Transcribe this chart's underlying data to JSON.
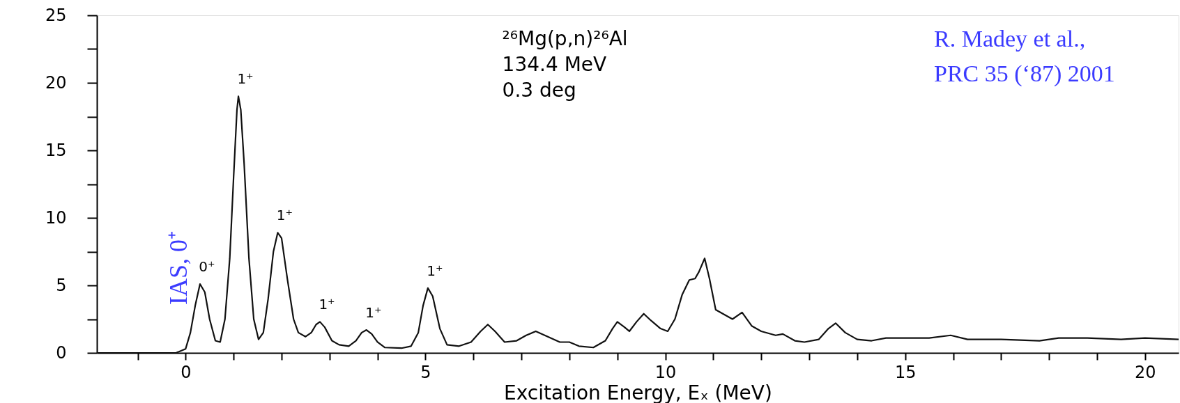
{
  "chart_data": {
    "type": "line",
    "xlabel": "Excitation Energy, Eₓ (MeV)",
    "x": [
      -1.85,
      -0.2,
      0,
      0.1,
      0.2,
      0.3,
      0.4,
      0.5,
      0.62,
      0.72,
      0.82,
      0.92,
      1.0,
      1.07,
      1.1,
      1.15,
      1.22,
      1.32,
      1.42,
      1.52,
      1.62,
      1.72,
      1.83,
      1.92,
      2.0,
      2.12,
      2.25,
      2.35,
      2.5,
      2.62,
      2.72,
      2.8,
      2.9,
      3.05,
      3.2,
      3.4,
      3.55,
      3.67,
      3.77,
      3.88,
      4.0,
      4.15,
      4.5,
      4.7,
      4.85,
      4.95,
      5.05,
      5.15,
      5.3,
      5.45,
      5.7,
      5.95,
      6.15,
      6.3,
      6.45,
      6.65,
      6.9,
      7.1,
      7.3,
      7.55,
      7.8,
      8.0,
      8.2,
      8.5,
      8.75,
      8.9,
      9.0,
      9.15,
      9.25,
      9.4,
      9.55,
      9.7,
      9.9,
      10.05,
      10.2,
      10.35,
      10.5,
      10.62,
      10.7,
      10.82,
      10.92,
      11.05,
      11.25,
      11.4,
      11.6,
      11.8,
      12.0,
      12.3,
      12.45,
      12.7,
      12.9,
      13.2,
      13.4,
      13.55,
      13.75,
      14.0,
      14.3,
      14.6,
      15.0,
      15.5,
      15.95,
      16.3,
      17.0,
      17.8,
      18.2,
      18.8,
      19.5,
      20.0,
      20.7
    ],
    "series": [
      {
        "color": "#111111",
        "values": [
          0,
          0,
          0.3,
          1.5,
          3.5,
          5.1,
          4.5,
          2.5,
          0.9,
          0.8,
          2.5,
          7,
          13,
          18,
          19.0,
          18,
          14,
          7,
          2.5,
          1.0,
          1.5,
          4,
          7.5,
          8.9,
          8.5,
          5.5,
          2.5,
          1.5,
          1.2,
          1.5,
          2.1,
          2.3,
          1.9,
          0.9,
          0.6,
          0.5,
          0.9,
          1.5,
          1.7,
          1.4,
          0.8,
          0.4,
          0.35,
          0.5,
          1.5,
          3.5,
          4.8,
          4.2,
          1.8,
          0.6,
          0.5,
          0.8,
          1.6,
          2.1,
          1.6,
          0.8,
          0.9,
          1.3,
          1.6,
          1.2,
          0.8,
          0.8,
          0.5,
          0.4,
          0.9,
          1.8,
          2.3,
          1.9,
          1.6,
          2.3,
          2.9,
          2.4,
          1.8,
          1.6,
          2.5,
          4.3,
          5.4,
          5.5,
          6.0,
          7.0,
          5.5,
          3.2,
          2.8,
          2.5,
          3.0,
          2.0,
          1.6,
          1.3,
          1.4,
          0.9,
          0.8,
          1.0,
          1.8,
          2.2,
          1.5,
          1.0,
          0.9,
          1.1,
          1.1,
          1.1,
          1.3,
          1.0,
          1.0,
          0.9,
          1.1,
          1.1,
          1.0,
          1.1,
          1.0
        ]
      }
    ],
    "xlim": [
      -1.85,
      20.7
    ],
    "ylim": [
      0,
      25
    ],
    "xticks": [
      {
        "value": -1,
        "label": null
      },
      0,
      {
        "value": 1,
        "label": null
      },
      {
        "value": 2,
        "label": null
      },
      {
        "value": 3,
        "label": null
      },
      {
        "value": 4,
        "label": null
      },
      5,
      {
        "value": 6,
        "label": null
      },
      {
        "value": 7,
        "label": null
      },
      {
        "value": 8,
        "label": null
      },
      {
        "value": 9,
        "label": null
      },
      10,
      {
        "value": 11,
        "label": null
      },
      {
        "value": 12,
        "label": null
      },
      {
        "value": 13,
        "label": null
      },
      {
        "value": 14,
        "label": null
      },
      15,
      {
        "value": 16,
        "label": null
      },
      {
        "value": 17,
        "label": null
      },
      {
        "value": 18,
        "label": null
      },
      {
        "value": 19,
        "label": null
      },
      20
    ],
    "yticks": [
      0,
      {
        "value": 2.5,
        "label": null
      },
      5,
      {
        "value": 7.5,
        "label": null
      },
      10,
      {
        "value": 12.5,
        "label": null
      },
      15,
      {
        "value": 17.5,
        "label": null
      },
      20,
      {
        "value": 22.5,
        "label": null
      },
      25
    ],
    "grid": false,
    "legend": false,
    "marker": "none",
    "line_style": "solid",
    "annotations": [
      {
        "text": "0⁺",
        "x": 0.3,
        "y": 5.1
      },
      {
        "text": "1⁺",
        "x": 1.1,
        "y": 19.0
      },
      {
        "text": "1⁺",
        "x": 1.92,
        "y": 8.9
      },
      {
        "text": "1⁺",
        "x": 2.8,
        "y": 2.3
      },
      {
        "text": "1⁺",
        "x": 3.77,
        "y": 1.7
      },
      {
        "text": "1⁺",
        "x": 5.05,
        "y": 4.8
      },
      {
        "text": "IAS, 0⁺",
        "x": 0.3,
        "y": 5.1
      },
      "²⁶Mg(p,n)²⁶Al",
      "134.4 MeV",
      "0.3 deg",
      "R. Madey et al.,",
      "PRC 35 (‘87) 2001"
    ]
  }
}
